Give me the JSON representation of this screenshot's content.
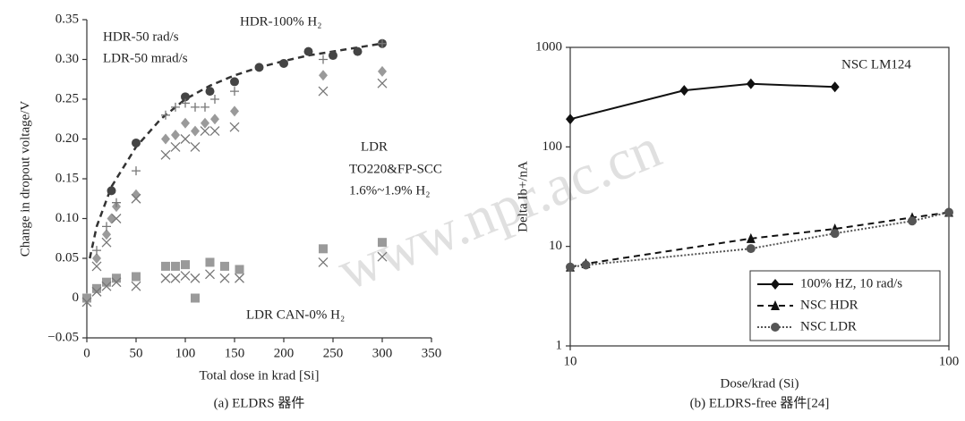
{
  "chart_data": [
    {
      "type": "scatter",
      "caption": "(a) ELDRS 器件",
      "xlabel": "Total dose in krad [Si]",
      "ylabel": "Change in dropout voltage/V",
      "xlim": [
        0,
        350
      ],
      "xticks": [
        0,
        50,
        100,
        150,
        200,
        250,
        300,
        350
      ],
      "ylim": [
        -0.05,
        0.35
      ],
      "yticks": [
        0.35,
        {
          "value": 0.3,
          "label": "0.30"
        },
        0.25,
        {
          "value": 0.2,
          "label": "0.20"
        },
        0.15,
        {
          "value": 0.1,
          "label": "0.10"
        },
        0.05,
        0,
        {
          "value": -0.05,
          "label": "−0.05"
        }
      ],
      "annotations": [
        "HDR-50 rad/s",
        "LDR-50 mrad/s",
        "HDR-100% H₂",
        "LDR",
        "TO220&FP-SCC",
        "1.6%~1.9% H₂",
        "LDR CAN-0% H₂"
      ],
      "series": [
        {
          "color": "#333333",
          "line": "dashed",
          "marker": null,
          "x": [
            3,
            10,
            25,
            50,
            75,
            100,
            125,
            150,
            175,
            200,
            225,
            250,
            275,
            300
          ],
          "values": [
            0.05,
            0.09,
            0.14,
            0.19,
            0.225,
            0.25,
            0.267,
            0.28,
            0.29,
            0.298,
            0.305,
            0.31,
            0.315,
            0.32
          ]
        },
        {
          "color": "#444444",
          "marker": "circle",
          "x": [
            0,
            25,
            50,
            100,
            125,
            150,
            175,
            200,
            225,
            250,
            275,
            300
          ],
          "values": [
            0,
            0.135,
            0.195,
            0.253,
            0.26,
            0.272,
            0.29,
            0.295,
            0.31,
            0.305,
            0.31,
            0.32
          ]
        },
        {
          "color": "#9a9a9a",
          "marker": "diamond",
          "x": [
            0,
            10,
            20,
            25,
            30,
            50,
            80,
            90,
            100,
            110,
            120,
            130,
            150,
            240,
            300
          ],
          "values": [
            0,
            0.05,
            0.08,
            0.1,
            0.115,
            0.13,
            0.2,
            0.205,
            0.22,
            0.21,
            0.22,
            0.225,
            0.235,
            0.28,
            0.285
          ]
        },
        {
          "color": "#777777",
          "marker": "plus",
          "x": [
            10,
            20,
            30,
            50,
            80,
            90,
            100,
            110,
            120,
            130,
            150,
            240,
            300
          ],
          "values": [
            0.06,
            0.09,
            0.12,
            0.16,
            0.23,
            0.24,
            0.245,
            0.24,
            0.24,
            0.25,
            0.26,
            0.3,
            0.32
          ]
        },
        {
          "color": "#777777",
          "marker": "cross",
          "x": [
            10,
            20,
            30,
            50,
            80,
            90,
            100,
            110,
            120,
            130,
            150,
            240,
            300
          ],
          "values": [
            0.04,
            0.07,
            0.1,
            0.125,
            0.18,
            0.19,
            0.2,
            0.19,
            0.21,
            0.21,
            0.215,
            0.26,
            0.27
          ]
        },
        {
          "color": "#9a9a9a",
          "marker": "square",
          "x": [
            0,
            10,
            20,
            30,
            50,
            80,
            90,
            100,
            110,
            125,
            140,
            155,
            240,
            300
          ],
          "values": [
            0,
            0.012,
            0.02,
            0.025,
            0.027,
            0.04,
            0.04,
            0.042,
            0,
            0.045,
            0.04,
            0.036,
            0.062,
            0.07
          ]
        },
        {
          "color": "#777777",
          "marker": "cross",
          "x": [
            0,
            10,
            20,
            30,
            50,
            80,
            90,
            100,
            110,
            125,
            140,
            155,
            240,
            300
          ],
          "values": [
            -0.005,
            0.008,
            0.015,
            0.02,
            0.015,
            0.025,
            0.025,
            0.028,
            0.025,
            0.03,
            0.025,
            0.025,
            0.045,
            0.052
          ]
        }
      ]
    },
    {
      "type": "line",
      "caption": "(b) ELDRS-free 器件[24]",
      "xlabel": "Dose/krad (Si)",
      "ylabel": "Delta Ib+/nA",
      "log": true,
      "xlim": [
        10,
        100
      ],
      "xticks": [
        10,
        100
      ],
      "ylim": [
        1,
        1000
      ],
      "yticks": [
        1,
        10,
        100,
        1000
      ],
      "annotations": [
        "NSC LM124"
      ],
      "legend": "lower right",
      "series": [
        {
          "name": "100% HZ, 10 rad/s",
          "color": "#111111",
          "line": "solid",
          "marker": "diamond",
          "x": [
            10,
            20,
            30,
            50
          ],
          "values": [
            190,
            370,
            430,
            400
          ]
        },
        {
          "name": "NSC HDR",
          "color": "#111111",
          "line": "dashed",
          "marker": "triangle",
          "x": [
            10,
            11,
            30,
            50,
            80,
            100
          ],
          "values": [
            6.2,
            6.7,
            12,
            15,
            19.5,
            22
          ]
        },
        {
          "name": "NSC LDR",
          "color": "#555555",
          "line": "dotted",
          "marker": "circle",
          "x": [
            10,
            11,
            30,
            50,
            80,
            100
          ],
          "values": [
            6.2,
            6.5,
            9.5,
            13.5,
            18,
            22
          ]
        }
      ]
    }
  ],
  "watermark": "www.npr.ac.cn"
}
